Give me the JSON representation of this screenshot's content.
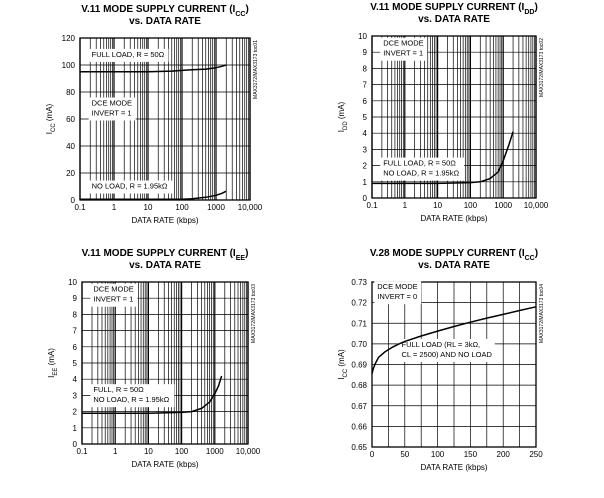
{
  "chart_data": [
    {
      "type": "line",
      "scale": "log",
      "title": "V.11 MODE SUPPLY CURRENT (ICC)",
      "title_main": "V.11 MODE SUPPLY CURRENT (I",
      "title_sub": "CC",
      "title_tail": ")",
      "title2": "vs. DATA RATE",
      "xlabel": "DATA RATE (kbps)",
      "ylabel": "ICC (mA)",
      "ylabel_main": "I",
      "ylabel_sub": "CC",
      "ylabel_tail": " (mA)",
      "xlim": [
        0.1,
        10000
      ],
      "ylim": [
        0,
        120
      ],
      "xticks": [
        0.1,
        1,
        10,
        100,
        1000,
        10000
      ],
      "xtick_labels": [
        "0.1",
        "1",
        "10",
        "100",
        "1000",
        "10,000"
      ],
      "yticks": [
        0,
        20,
        40,
        60,
        80,
        100,
        120
      ],
      "ytick_labels": [
        "0",
        "20",
        "40",
        "60",
        "80",
        "100",
        "120"
      ],
      "part_code": "MAX3172/MAX3173 toc01",
      "annotations": [
        {
          "lines": [
            "FULL LOAD, R = 50Ω"
          ],
          "at": [
            0.22,
            106
          ]
        },
        {
          "lines": [
            "DCE MODE",
            "INVERT = 1"
          ],
          "at": [
            0.22,
            70
          ]
        },
        {
          "lines": [
            "NO LOAD, R = 1.95kΩ"
          ],
          "at": [
            0.22,
            8.5
          ]
        }
      ],
      "series": [
        {
          "name": "FULL LOAD, R = 50Ω",
          "x": [
            0.1,
            1,
            10,
            50,
            100,
            200,
            500,
            1000,
            1500,
            2000
          ],
          "y": [
            95,
            95,
            95,
            95.5,
            96,
            96.5,
            97,
            98,
            99,
            100
          ]
        },
        {
          "name": "NO LOAD, R = 1.95kΩ",
          "x": [
            0.1,
            1,
            10,
            100,
            200,
            500,
            1000,
            1500,
            2000
          ],
          "y": [
            0.5,
            0.5,
            0.5,
            0.6,
            1.0,
            2.0,
            3.5,
            5.0,
            6.5
          ]
        }
      ]
    },
    {
      "type": "line",
      "scale": "log",
      "title": "V.11 MODE SUPPLY CURRENT (IDD)",
      "title_main": "V.11 MODE SUPPLY CURRENT (I",
      "title_sub": "DD",
      "title_tail": ")",
      "title2": "vs. DATA RATE",
      "xlabel": "DATA RATE (kbps)",
      "ylabel": "IDD (mA)",
      "ylabel_main": "I",
      "ylabel_sub": "DD",
      "ylabel_tail": " (mA)",
      "xlim": [
        0.1,
        10000
      ],
      "ylim": [
        0,
        10
      ],
      "xticks": [
        0.1,
        1,
        10,
        100,
        1000,
        10000
      ],
      "xtick_labels": [
        "0.1",
        "1",
        "10",
        "100",
        "1000",
        "10,000"
      ],
      "yticks": [
        0,
        1,
        2,
        3,
        4,
        5,
        6,
        7,
        8,
        9,
        10
      ],
      "ytick_labels": [
        "0",
        "1",
        "2",
        "3",
        "4",
        "5",
        "6",
        "7",
        "8",
        "9",
        "10"
      ],
      "part_code": "MAX3172/MAX3173 toc02",
      "annotations": [
        {
          "lines": [
            "DCE MODE",
            "INVERT = 1"
          ],
          "at": [
            0.22,
            9.4
          ]
        },
        {
          "lines": [
            "FULL LOAD, R = 50Ω",
            "NO LOAD, R = 1.95kΩ"
          ],
          "at": [
            0.22,
            2.0
          ]
        }
      ],
      "series": [
        {
          "name": "FULL LOAD / NO LOAD",
          "x": [
            0.1,
            1,
            10,
            100,
            200,
            400,
            700,
            1000,
            1500,
            2000
          ],
          "y": [
            0.9,
            0.9,
            0.9,
            0.95,
            1.0,
            1.2,
            1.6,
            2.3,
            3.3,
            4.1
          ]
        }
      ]
    },
    {
      "type": "line",
      "scale": "log",
      "title": "V.11 MODE SUPPLY CURRENT (IEE)",
      "title_main": "V.11 MODE SUPPLY CURRENT (I",
      "title_sub": "EE",
      "title_tail": ")",
      "title2": "vs. DATA RATE",
      "xlabel": "DATA RATE (kbps)",
      "ylabel": "IEE (mA)",
      "ylabel_main": "I",
      "ylabel_sub": "EE",
      "ylabel_tail": " (mA)",
      "xlim": [
        0.1,
        10000
      ],
      "ylim": [
        0,
        10
      ],
      "xticks": [
        0.1,
        1,
        10,
        100,
        1000,
        10000
      ],
      "xtick_labels": [
        "0.1",
        "1",
        "10",
        "100",
        "1000",
        "10,000"
      ],
      "yticks": [
        0,
        1,
        2,
        3,
        4,
        5,
        6,
        7,
        8,
        9,
        10
      ],
      "ytick_labels": [
        "0",
        "1",
        "2",
        "3",
        "4",
        "5",
        "6",
        "7",
        "8",
        "9",
        "10"
      ],
      "part_code": "MAX3172/MAX3173 toc03",
      "annotations": [
        {
          "lines": [
            "DCE MODE",
            "INVERT = 1"
          ],
          "at": [
            0.22,
            9.4
          ]
        },
        {
          "lines": [
            "FULL, R = 50Ω",
            "NO LOAD, R = 1.95kΩ"
          ],
          "at": [
            0.22,
            3.2
          ]
        }
      ],
      "series": [
        {
          "name": "FULL / NO LOAD",
          "x": [
            0.1,
            1,
            10,
            100,
            200,
            400,
            700,
            1000,
            1300,
            1600
          ],
          "y": [
            1.9,
            1.9,
            1.9,
            1.95,
            2.0,
            2.2,
            2.6,
            3.1,
            3.6,
            4.2
          ]
        }
      ]
    },
    {
      "type": "line",
      "scale": "linear",
      "title": "V.28 MODE SUPPLY CURRENT (ICC)",
      "title_main": "V.28 MODE SUPPLY CURRENT (I",
      "title_sub": "CC",
      "title_tail": ")",
      "title2": "vs. DATA RATE",
      "xlabel": "DATA RATE (kbps)",
      "ylabel": "ICC (mA)",
      "ylabel_main": "I",
      "ylabel_sub": "CC",
      "ylabel_tail": " (mA)",
      "xlim": [
        0,
        250
      ],
      "ylim": [
        0.65,
        0.73
      ],
      "xticks": [
        0,
        25,
        50,
        75,
        100,
        125,
        150,
        175,
        200,
        225,
        250
      ],
      "xtick_labels": [
        "0",
        "",
        "50",
        "",
        "100",
        "",
        "150",
        "",
        "200",
        "",
        "250"
      ],
      "yticks": [
        0.65,
        0.66,
        0.67,
        0.68,
        0.69,
        0.7,
        0.71,
        0.72,
        0.73
      ],
      "ytick_labels": [
        "0.65",
        "0.66",
        "0.67",
        "0.68",
        "0.69",
        "0.70",
        "0.71",
        "0.72",
        "0.73"
      ],
      "part_code": "MAX3172/MAX3173 toc04",
      "annotations": [
        {
          "lines": [
            "DCE MODE",
            "INVERT = 0"
          ],
          "at": [
            8,
            0.7265
          ]
        },
        {
          "lines": [
            "FULL LOAD (RL = 3kΩ,",
            "CL = 2500) AND NO LOAD"
          ],
          "at": [
            45,
            0.6985
          ]
        }
      ],
      "series": [
        {
          "name": "FULL LOAD (RL = 3kΩ, CL = 2500) AND NO LOAD",
          "x": [
            0,
            2,
            5,
            10,
            20,
            30,
            40,
            50,
            75,
            100,
            125,
            150,
            175,
            200,
            225,
            250
          ],
          "y": [
            0.6855,
            0.688,
            0.6905,
            0.6935,
            0.6962,
            0.6982,
            0.6998,
            0.7012,
            0.7038,
            0.7062,
            0.7084,
            0.7105,
            0.7125,
            0.7143,
            0.7162,
            0.718
          ]
        }
      ]
    }
  ]
}
